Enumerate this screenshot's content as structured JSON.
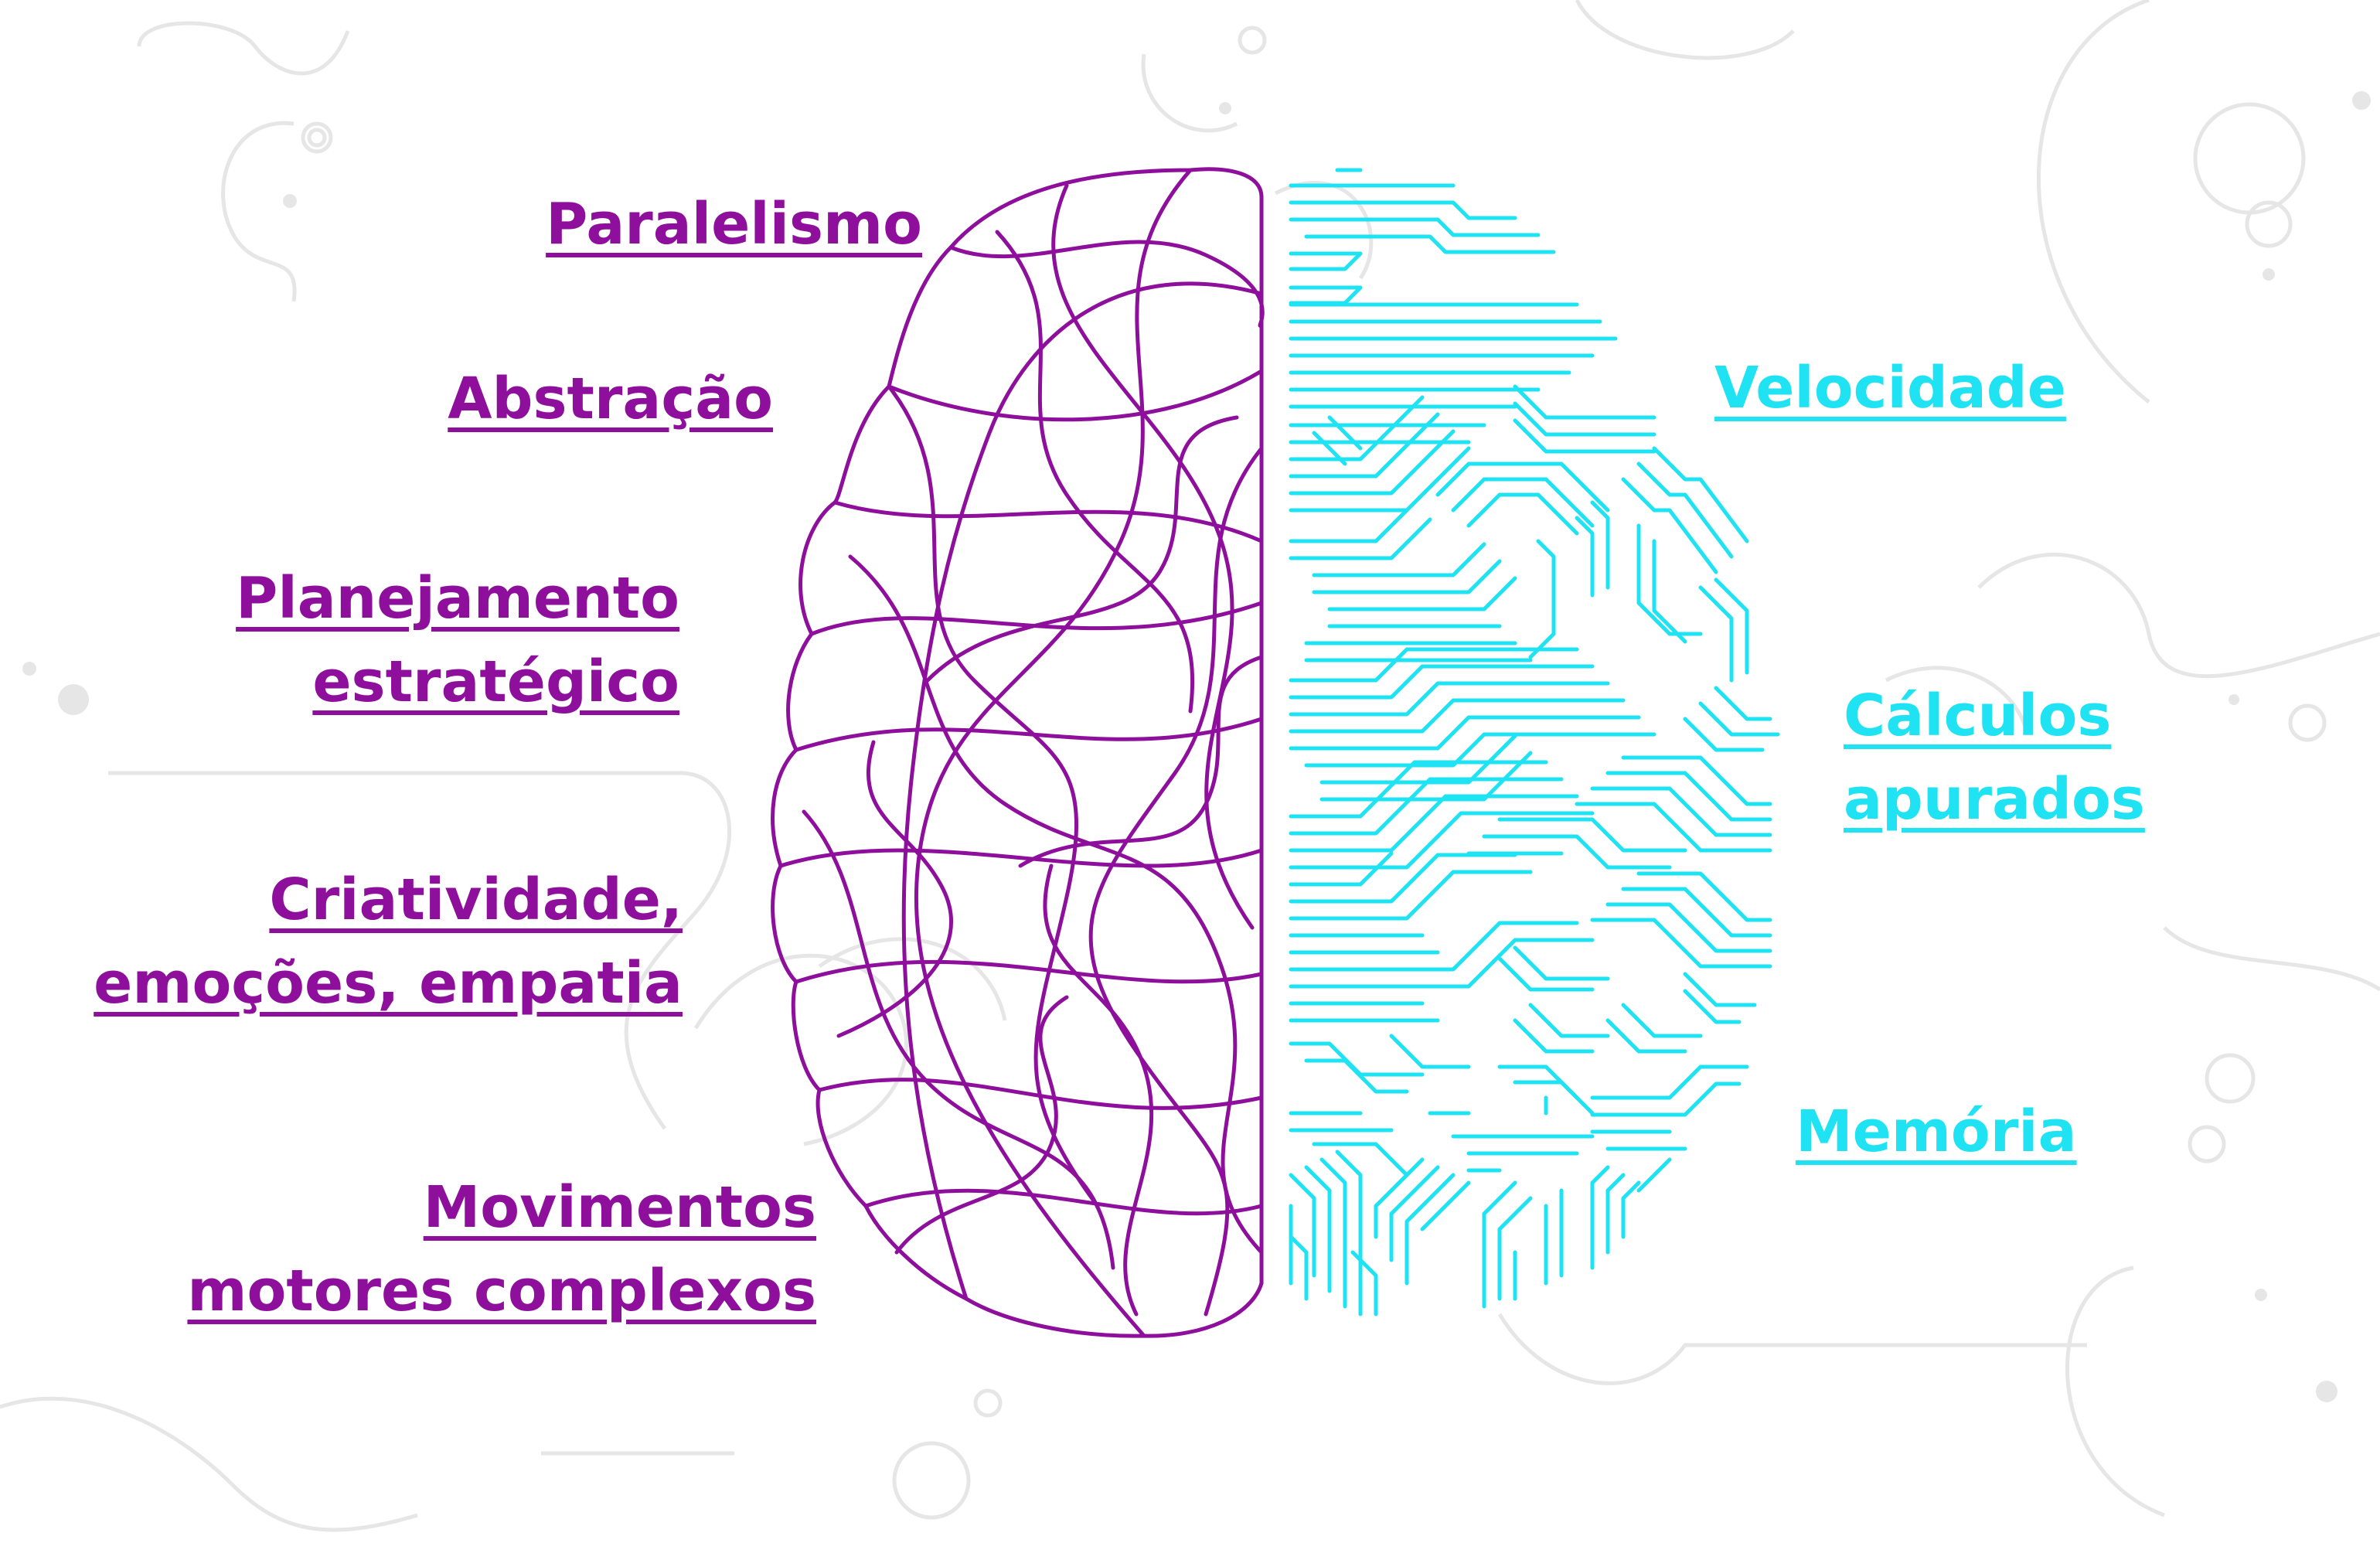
{
  "colors": {
    "human": "#8e0f9c",
    "machine": "#1fe3f2",
    "background_lines": "#e6e6e6"
  },
  "left_labels": [
    {
      "lines": [
        "Paralelismo"
      ]
    },
    {
      "lines": [
        "Abstração"
      ]
    },
    {
      "lines": [
        "Planejamento ",
        "estratégico"
      ]
    },
    {
      "lines": [
        "Criatividade, ",
        "emoções, empatia"
      ]
    },
    {
      "lines": [
        "Movimentos ",
        "motores complexos"
      ]
    }
  ],
  "right_labels": [
    {
      "lines": [
        "Velocidade"
      ]
    },
    {
      "lines": [
        "Cálculos ",
        "apurados"
      ]
    },
    {
      "lines": [
        "Memória"
      ]
    }
  ]
}
